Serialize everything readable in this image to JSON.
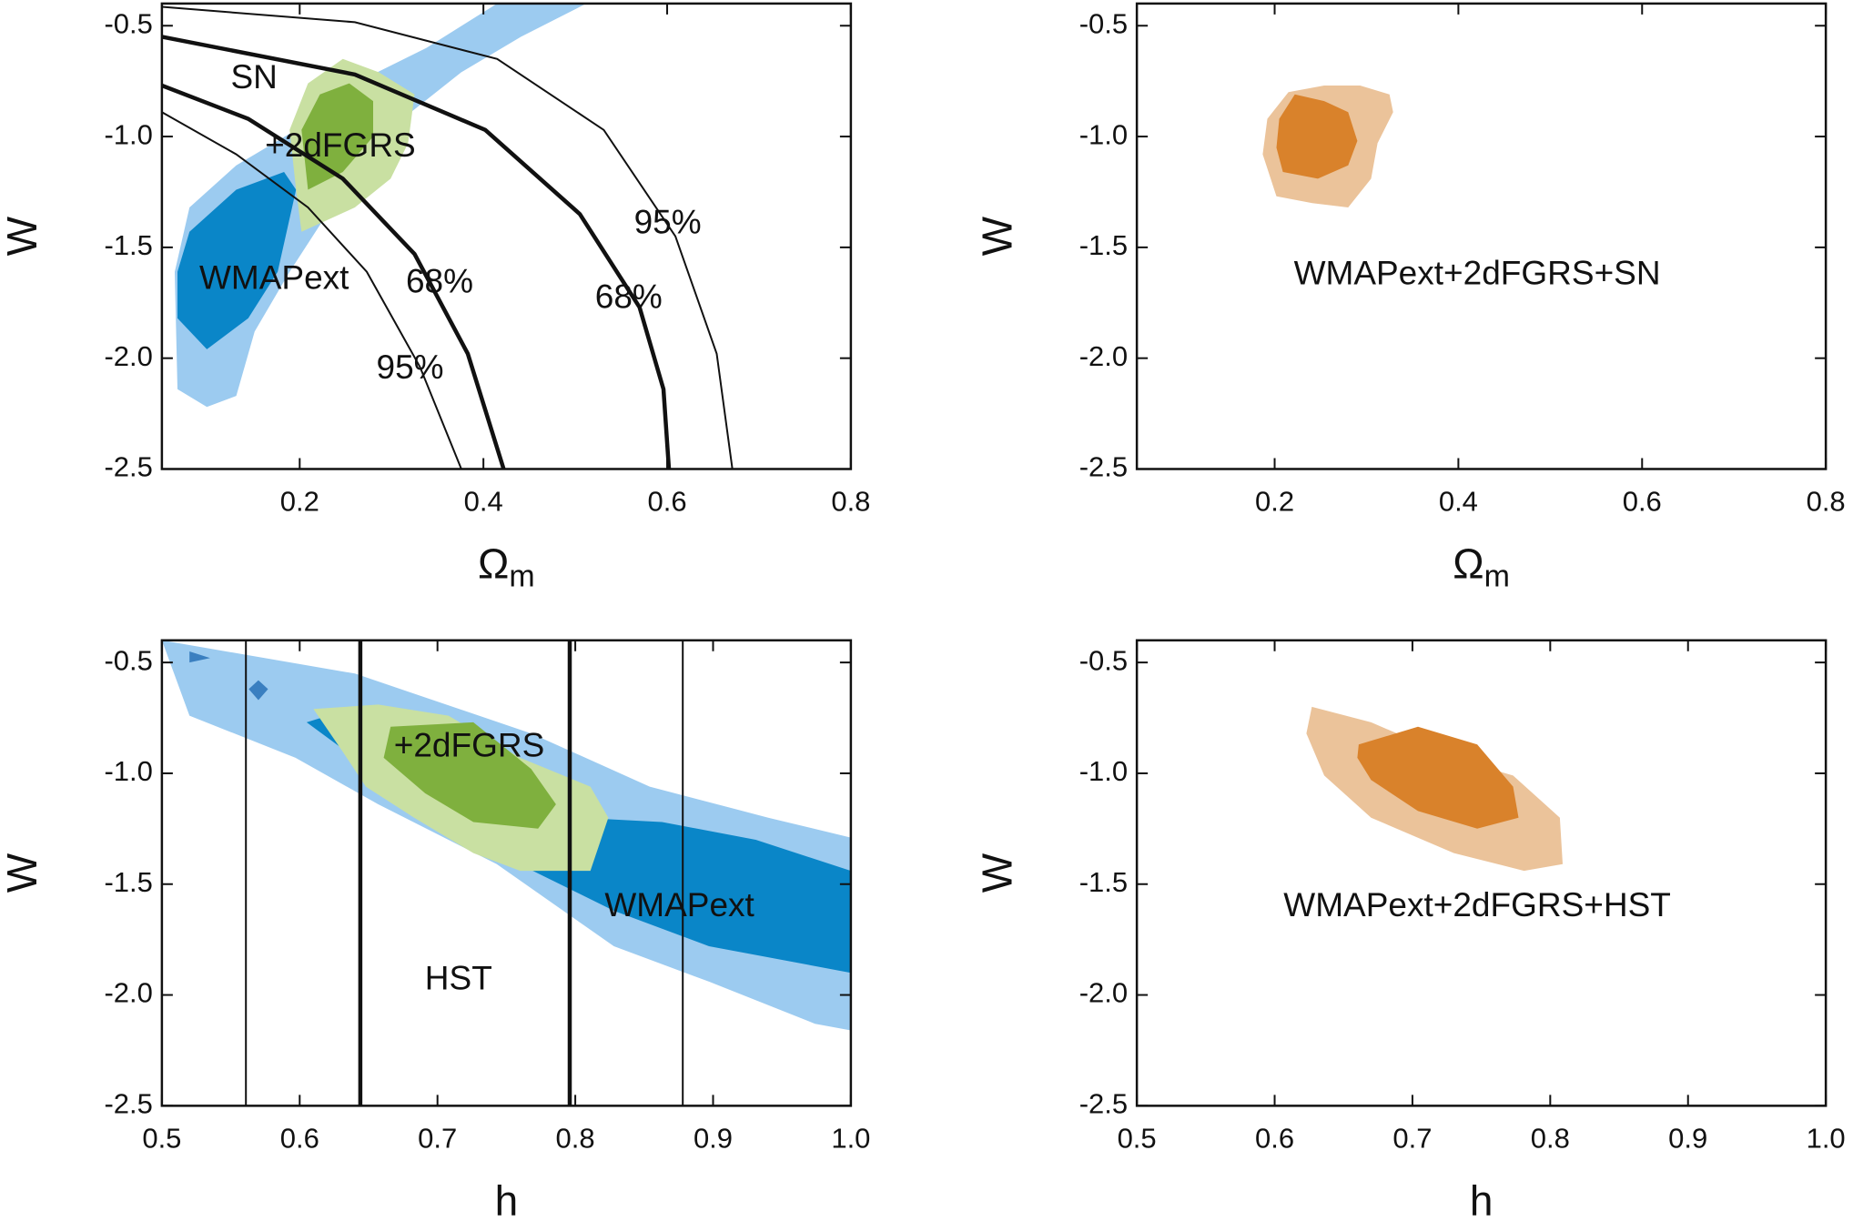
{
  "chart_data": [
    {
      "type": "contour",
      "xlabel": "Ω",
      "xlabel_sub": "m",
      "ylabel": "W",
      "xlim": [
        0.05,
        0.8
      ],
      "ylim": [
        -2.5,
        -0.4
      ],
      "xticks": [
        0.2,
        0.4,
        0.6,
        0.8
      ],
      "yticks": [
        -0.5,
        {
          "value": -1,
          "label": "-1.0"
        },
        -1.5,
        {
          "value": -2,
          "label": "-2.0"
        },
        -2.5
      ],
      "series": [
        {
          "color": "#9ccbf0",
          "x": [
            0.067,
            0.099,
            0.131,
            0.151,
            0.189,
            0.247,
            0.312,
            0.376,
            0.441,
            0.512,
            0.415,
            0.338,
            0.26,
            0.196,
            0.131,
            0.08,
            0.064
          ],
          "y": [
            -2.14,
            -2.22,
            -2.17,
            -1.88,
            -1.61,
            -1.24,
            -0.92,
            -0.71,
            -0.55,
            -0.4,
            -0.4,
            -0.6,
            -0.76,
            -0.97,
            -1.13,
            -1.32,
            -1.61
          ]
        },
        {
          "color": "#0a86c8",
          "x": [
            0.067,
            0.099,
            0.144,
            0.176,
            0.196,
            0.183,
            0.131,
            0.08,
            0.067
          ],
          "y": [
            -1.82,
            -1.96,
            -1.82,
            -1.61,
            -1.24,
            -1.16,
            -1.24,
            -1.43,
            -1.61
          ]
        },
        {
          "color": "#c9e0a2",
          "x": [
            0.202,
            0.26,
            0.299,
            0.318,
            0.325,
            0.286,
            0.247,
            0.209,
            0.189,
            0.196
          ],
          "y": [
            -1.43,
            -1.32,
            -1.19,
            -1.03,
            -0.81,
            -0.71,
            -0.65,
            -0.76,
            -0.97,
            -1.24
          ]
        },
        {
          "color": "#7fb03e",
          "x": [
            0.209,
            0.247,
            0.28,
            0.28,
            0.254,
            0.222,
            0.202
          ],
          "y": [
            -1.24,
            -1.16,
            -1.0,
            -0.84,
            -0.76,
            -0.81,
            -0.97
          ]
        }
      ],
      "lines": [
        {
          "style": "thin",
          "x": [
            0.05,
            0.26,
            0.415,
            0.531,
            0.609,
            0.654,
            0.671
          ],
          "y": [
            -0.415,
            -0.484,
            -0.65,
            -0.97,
            -1.45,
            -1.98,
            -2.5
          ]
        },
        {
          "style": "thick",
          "x": [
            0.05,
            0.26,
            0.402,
            0.505,
            0.57,
            0.596,
            0.602
          ],
          "y": [
            -0.55,
            -0.72,
            -0.97,
            -1.35,
            -1.77,
            -2.14,
            -2.5
          ]
        },
        {
          "style": "thick",
          "x": [
            0.05,
            0.144,
            0.247,
            0.325,
            0.383,
            0.422
          ],
          "y": [
            -0.77,
            -0.92,
            -1.19,
            -1.53,
            -1.98,
            -2.5
          ]
        },
        {
          "style": "thin",
          "x": [
            0.05,
            0.131,
            0.209,
            0.273,
            0.331,
            0.376
          ],
          "y": [
            -0.89,
            -1.08,
            -1.32,
            -1.61,
            -2.04,
            -2.5
          ]
        }
      ],
      "annotations": [
        "SN",
        "+2dFGRS",
        "WMAPext",
        "95%",
        "68%",
        "68%",
        "95%"
      ]
    },
    {
      "type": "contour",
      "xlabel": "Ω",
      "xlabel_sub": "m",
      "ylabel": "W",
      "xlim": [
        0.05,
        0.8
      ],
      "ylim": [
        -2.5,
        -0.4
      ],
      "xticks": [
        0.2,
        0.4,
        0.6,
        0.8
      ],
      "yticks": [
        -0.5,
        {
          "value": -1,
          "label": "-1.0"
        },
        -1.5,
        {
          "value": -2,
          "label": "-2.0"
        },
        -2.5
      ],
      "series": [
        {
          "color": "#ebc39a",
          "x": [
            0.202,
            0.241,
            0.28,
            0.305,
            0.312,
            0.329,
            0.325,
            0.293,
            0.254,
            0.215,
            0.192,
            0.187
          ],
          "y": [
            -1.27,
            -1.3,
            -1.32,
            -1.19,
            -1.03,
            -0.89,
            -0.81,
            -0.77,
            -0.77,
            -0.8,
            -0.92,
            -1.08
          ]
        },
        {
          "color": "#d9822b",
          "x": [
            0.209,
            0.247,
            0.28,
            0.29,
            0.28,
            0.254,
            0.222,
            0.205,
            0.202
          ],
          "y": [
            -1.16,
            -1.19,
            -1.13,
            -1.02,
            -0.89,
            -0.84,
            -0.81,
            -0.92,
            -1.05
          ]
        }
      ],
      "lines": [],
      "annotations": [
        "WMAPext+2dFGRS+SN"
      ]
    },
    {
      "type": "contour",
      "xlabel": "h",
      "ylabel": "W",
      "xlim": [
        0.5,
        1.0
      ],
      "ylim": [
        -2.5,
        -0.4
      ],
      "xticks": [
        0.5,
        0.6,
        0.7,
        0.8,
        0.9,
        {
          "value": 1,
          "label": "1.0"
        }
      ],
      "yticks": [
        -0.5,
        {
          "value": -1,
          "label": "-1.0"
        },
        -1.5,
        {
          "value": -2,
          "label": "-2.0"
        },
        -2.5
      ],
      "series": [
        {
          "color": "#9ccbf0",
          "x": [
            0.5,
            0.64,
            0.768,
            0.854,
            0.94,
            1.0,
            1.0,
            0.974,
            0.897,
            0.828,
            0.743,
            0.657,
            0.597,
            0.52
          ],
          "y": [
            -0.4,
            -0.55,
            -0.82,
            -1.06,
            -1.2,
            -1.29,
            -2.16,
            -2.13,
            -1.94,
            -1.78,
            -1.41,
            -1.14,
            -0.93,
            -0.74
          ]
        },
        {
          "color": "#0a86c8",
          "x": [
            0.605,
            0.64,
            0.743,
            0.828,
            0.897,
            1.0,
            1.0,
            0.931,
            0.863,
            0.803,
            0.751,
            0.683,
            0.631
          ],
          "y": [
            -0.77,
            -0.93,
            -1.36,
            -1.62,
            -1.78,
            -1.9,
            -1.44,
            -1.3,
            -1.22,
            -1.2,
            -1.03,
            -0.82,
            -0.72
          ]
        },
        {
          "color": "#3a7fc0",
          "x": [
            0.52,
            0.535,
            0.52
          ],
          "y": [
            -0.45,
            -0.48,
            -0.5
          ]
        },
        {
          "color": "#3a7fc0",
          "x": [
            0.563,
            0.57,
            0.577,
            0.57
          ],
          "y": [
            -0.62,
            -0.58,
            -0.62,
            -0.67
          ]
        },
        {
          "color": "#c9e0a2",
          "x": [
            0.61,
            0.657,
            0.708,
            0.76,
            0.811,
            0.824,
            0.811,
            0.76,
            0.726,
            0.683,
            0.648,
            0.631
          ],
          "y": [
            -0.71,
            -0.69,
            -0.74,
            -0.93,
            -1.06,
            -1.2,
            -1.44,
            -1.44,
            -1.36,
            -1.2,
            -1.06,
            -0.9
          ]
        },
        {
          "color": "#7fb03e",
          "x": [
            0.666,
            0.726,
            0.768,
            0.786,
            0.773,
            0.726,
            0.691,
            0.661
          ],
          "y": [
            -0.79,
            -0.77,
            -0.98,
            -1.14,
            -1.25,
            -1.22,
            -1.09,
            -0.93
          ]
        }
      ],
      "lines": [
        {
          "style": "thin",
          "x": [
            0.561,
            0.561
          ],
          "y": [
            -2.5,
            -0.4
          ]
        },
        {
          "style": "thick",
          "x": [
            0.644,
            0.644
          ],
          "y": [
            -2.5,
            -0.4
          ]
        },
        {
          "style": "thick",
          "x": [
            0.796,
            0.796
          ],
          "y": [
            -2.5,
            -0.4
          ]
        },
        {
          "style": "thin",
          "x": [
            0.878,
            0.878
          ],
          "y": [
            -2.5,
            -0.4
          ]
        }
      ],
      "annotations": [
        "+2dFGRS",
        "WMAPext",
        "HST"
      ]
    },
    {
      "type": "contour",
      "xlabel": "h",
      "ylabel": "W",
      "xlim": [
        0.5,
        1.0
      ],
      "ylim": [
        -2.5,
        -0.4
      ],
      "xticks": [
        0.5,
        0.6,
        0.7,
        0.8,
        0.9,
        {
          "value": 1,
          "label": "1.0"
        }
      ],
      "yticks": [
        -0.5,
        {
          "value": -1,
          "label": "-1.0"
        },
        -1.5,
        {
          "value": -2,
          "label": "-2.0"
        },
        -2.5
      ],
      "series": [
        {
          "color": "#ebc39a",
          "x": [
            0.627,
            0.67,
            0.73,
            0.773,
            0.807,
            0.809,
            0.781,
            0.73,
            0.67,
            0.636,
            0.623
          ],
          "y": [
            -0.7,
            -0.77,
            -0.93,
            -1.01,
            -1.2,
            -1.41,
            -1.44,
            -1.36,
            -1.2,
            -1.01,
            -0.82
          ]
        },
        {
          "color": "#d9822b",
          "x": [
            0.661,
            0.704,
            0.747,
            0.773,
            0.777,
            0.747,
            0.704,
            0.67,
            0.66
          ],
          "y": [
            -0.87,
            -0.79,
            -0.87,
            -1.06,
            -1.2,
            -1.25,
            -1.17,
            -1.03,
            -0.93
          ]
        }
      ],
      "lines": [],
      "annotations": [
        "WMAPext+2dFGRS+HST"
      ]
    }
  ]
}
